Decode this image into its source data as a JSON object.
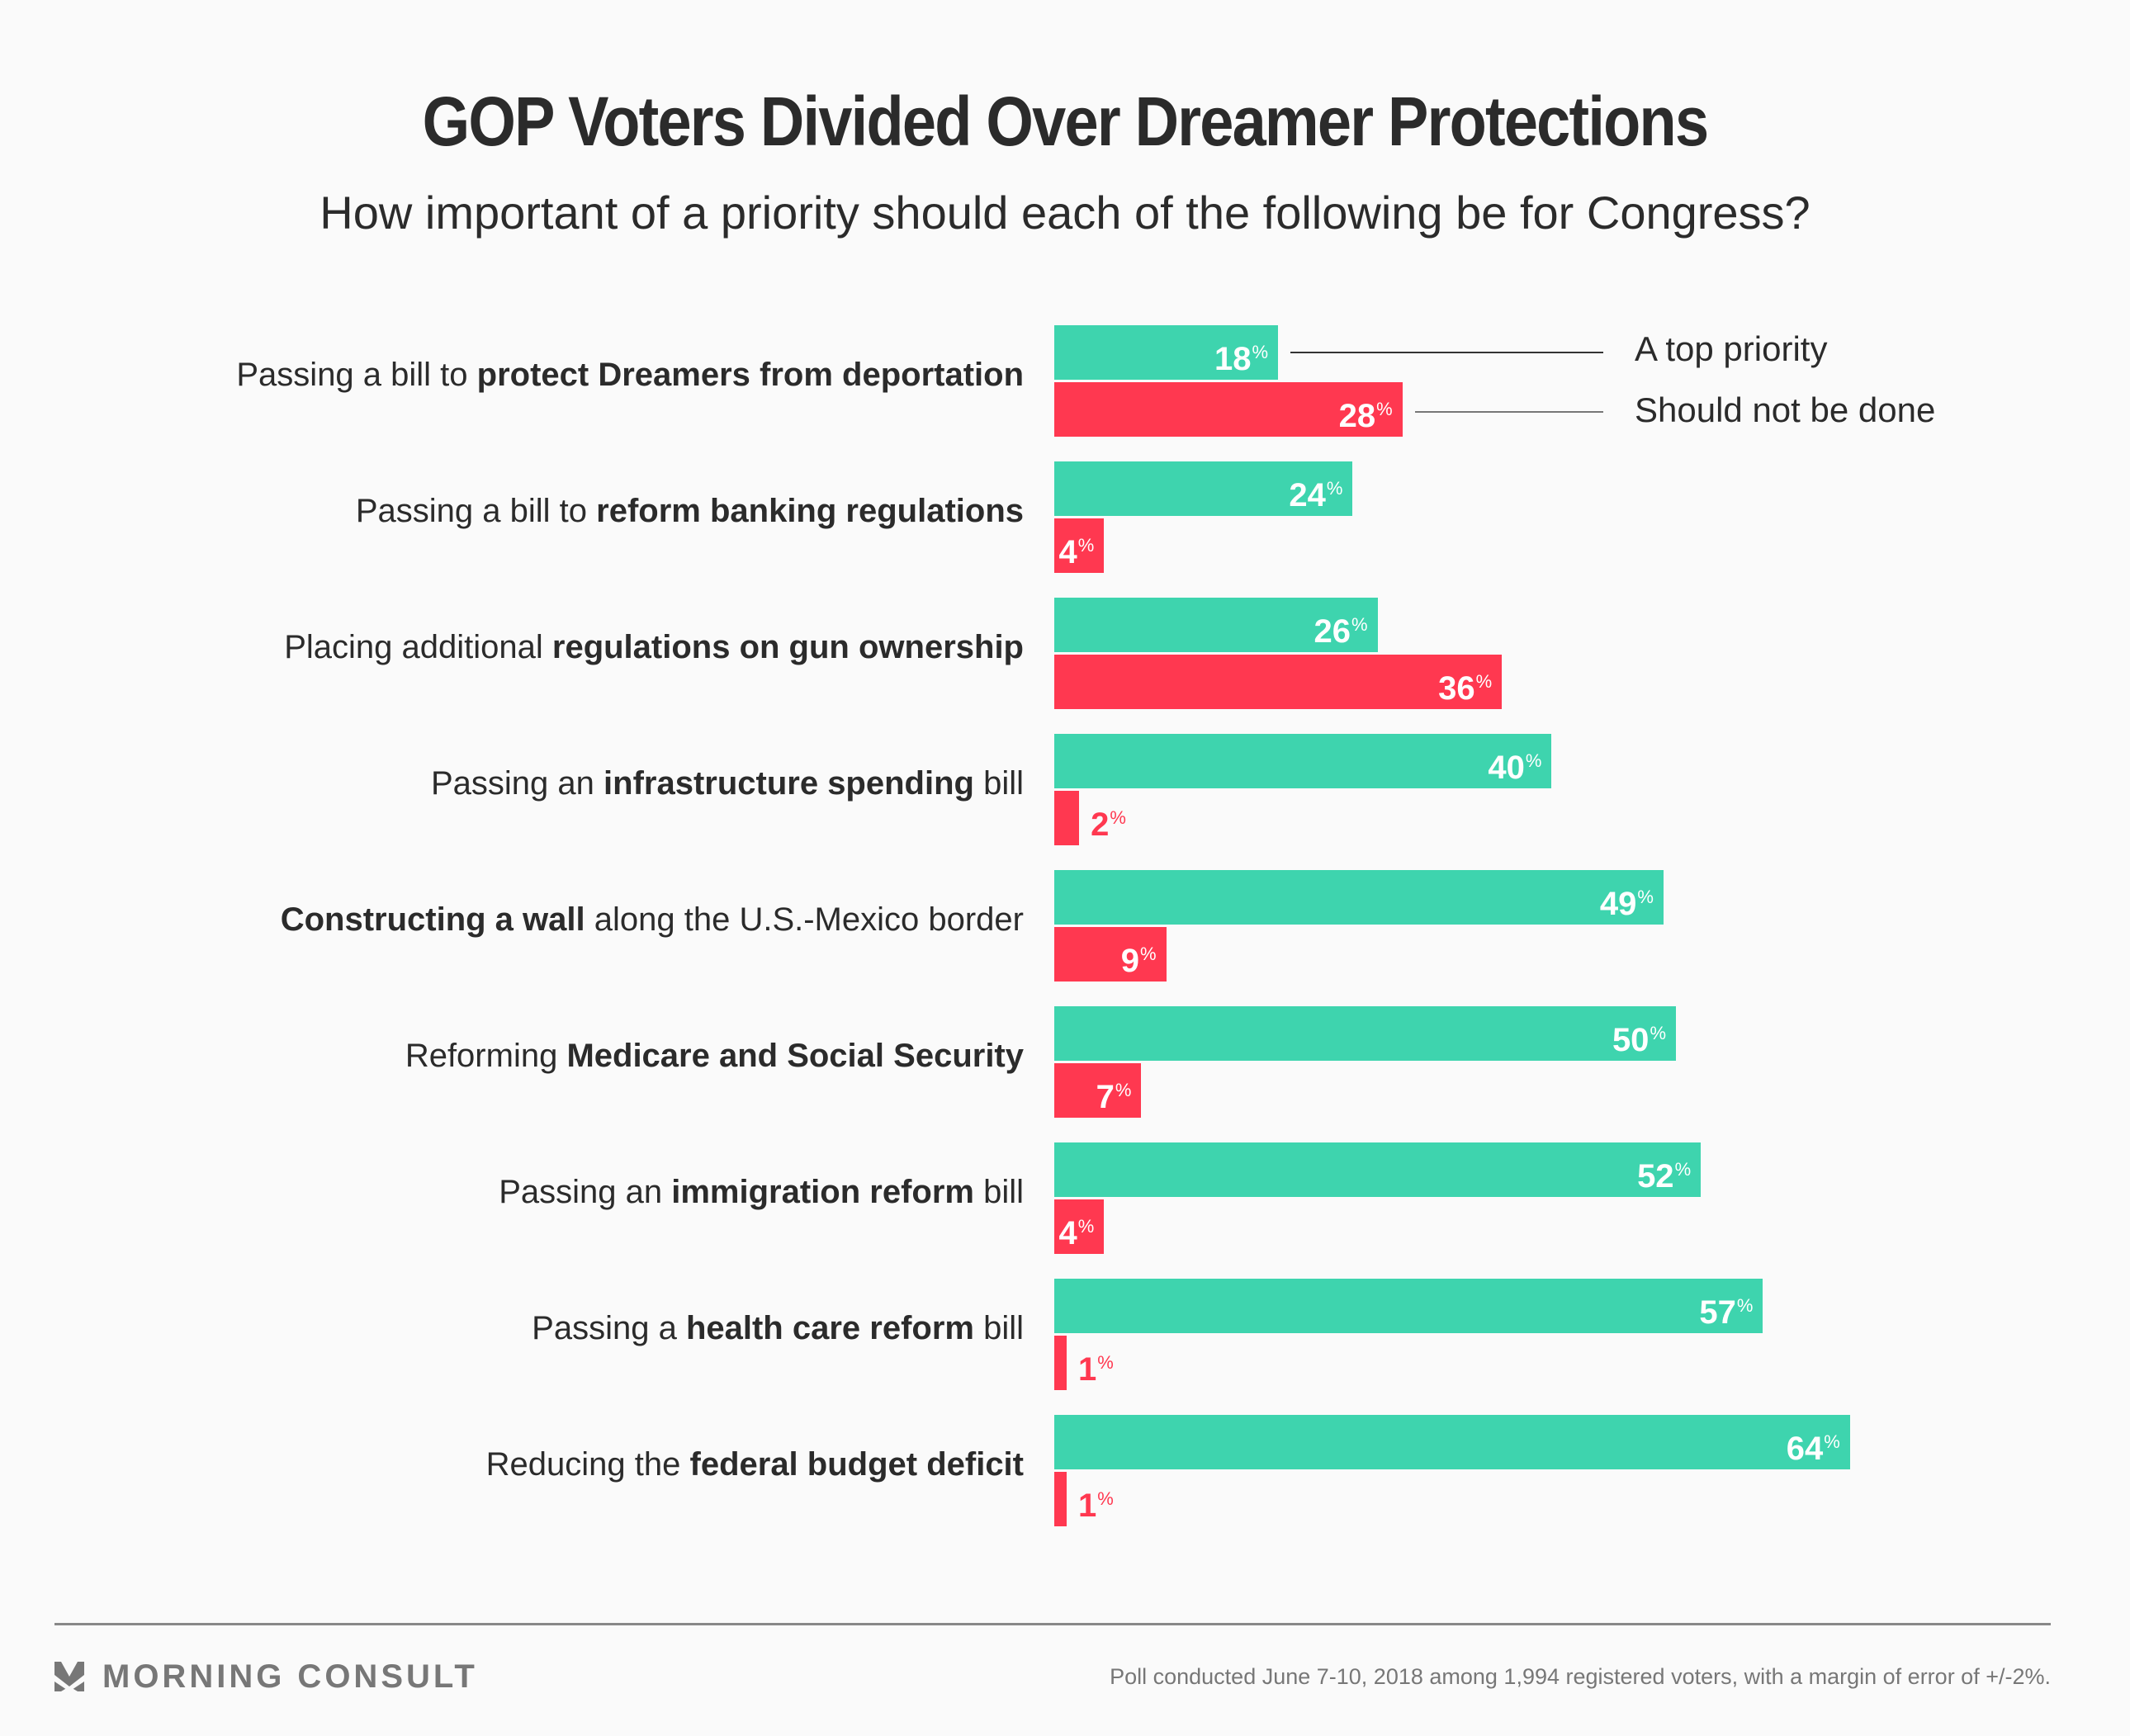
{
  "header": {
    "title": "GOP Voters Divided Over Dreamer Protections",
    "subtitle": "How important of a priority should each of the following be for Congress?"
  },
  "colors": {
    "top_priority": "#3ed4ae",
    "should_not_be_done": "#ff3850",
    "text": "#2b2b2b",
    "muted": "#777777"
  },
  "legend": {
    "top_priority": "A top priority",
    "should_not_be_done": "Should not be done"
  },
  "chart_data": {
    "type": "bar",
    "orientation": "horizontal",
    "title": "GOP Voters Divided Over Dreamer Protections",
    "subtitle": "How important of a priority should each of the following be for Congress?",
    "xlabel": "",
    "ylabel": "",
    "unit": "%",
    "xlim": [
      0,
      100
    ],
    "grid": false,
    "legend_position": "top-right",
    "categories": [
      {
        "pre": "Passing a bill to ",
        "bold": "protect Dreamers from deportation",
        "post": ""
      },
      {
        "pre": "Passing a bill to ",
        "bold": "reform banking regulations",
        "post": ""
      },
      {
        "pre": "Placing additional ",
        "bold": "regulations on gun ownership",
        "post": ""
      },
      {
        "pre": "Passing an ",
        "bold": "infrastructure spending",
        "post": " bill"
      },
      {
        "pre": "",
        "bold": "Constructing a wall",
        "post": " along the U.S.-Mexico border"
      },
      {
        "pre": "Reforming ",
        "bold": "Medicare and Social Security",
        "post": ""
      },
      {
        "pre": "Passing an ",
        "bold": "immigration reform",
        "post": " bill"
      },
      {
        "pre": "Passing a ",
        "bold": "health care reform",
        "post": " bill"
      },
      {
        "pre": "Reducing the ",
        "bold": "federal budget deficit",
        "post": ""
      }
    ],
    "series": [
      {
        "name": "A top priority",
        "key": "top",
        "values": [
          18,
          24,
          26,
          40,
          49,
          50,
          52,
          57,
          64
        ]
      },
      {
        "name": "Should not be done",
        "key": "not",
        "values": [
          28,
          4,
          36,
          2,
          9,
          7,
          4,
          1,
          1
        ]
      }
    ]
  },
  "footer": {
    "brand": "MORNING CONSULT",
    "note": "Poll conducted June 7-10, 2018 among 1,994 registered voters, with a margin of error of +/-2%."
  }
}
